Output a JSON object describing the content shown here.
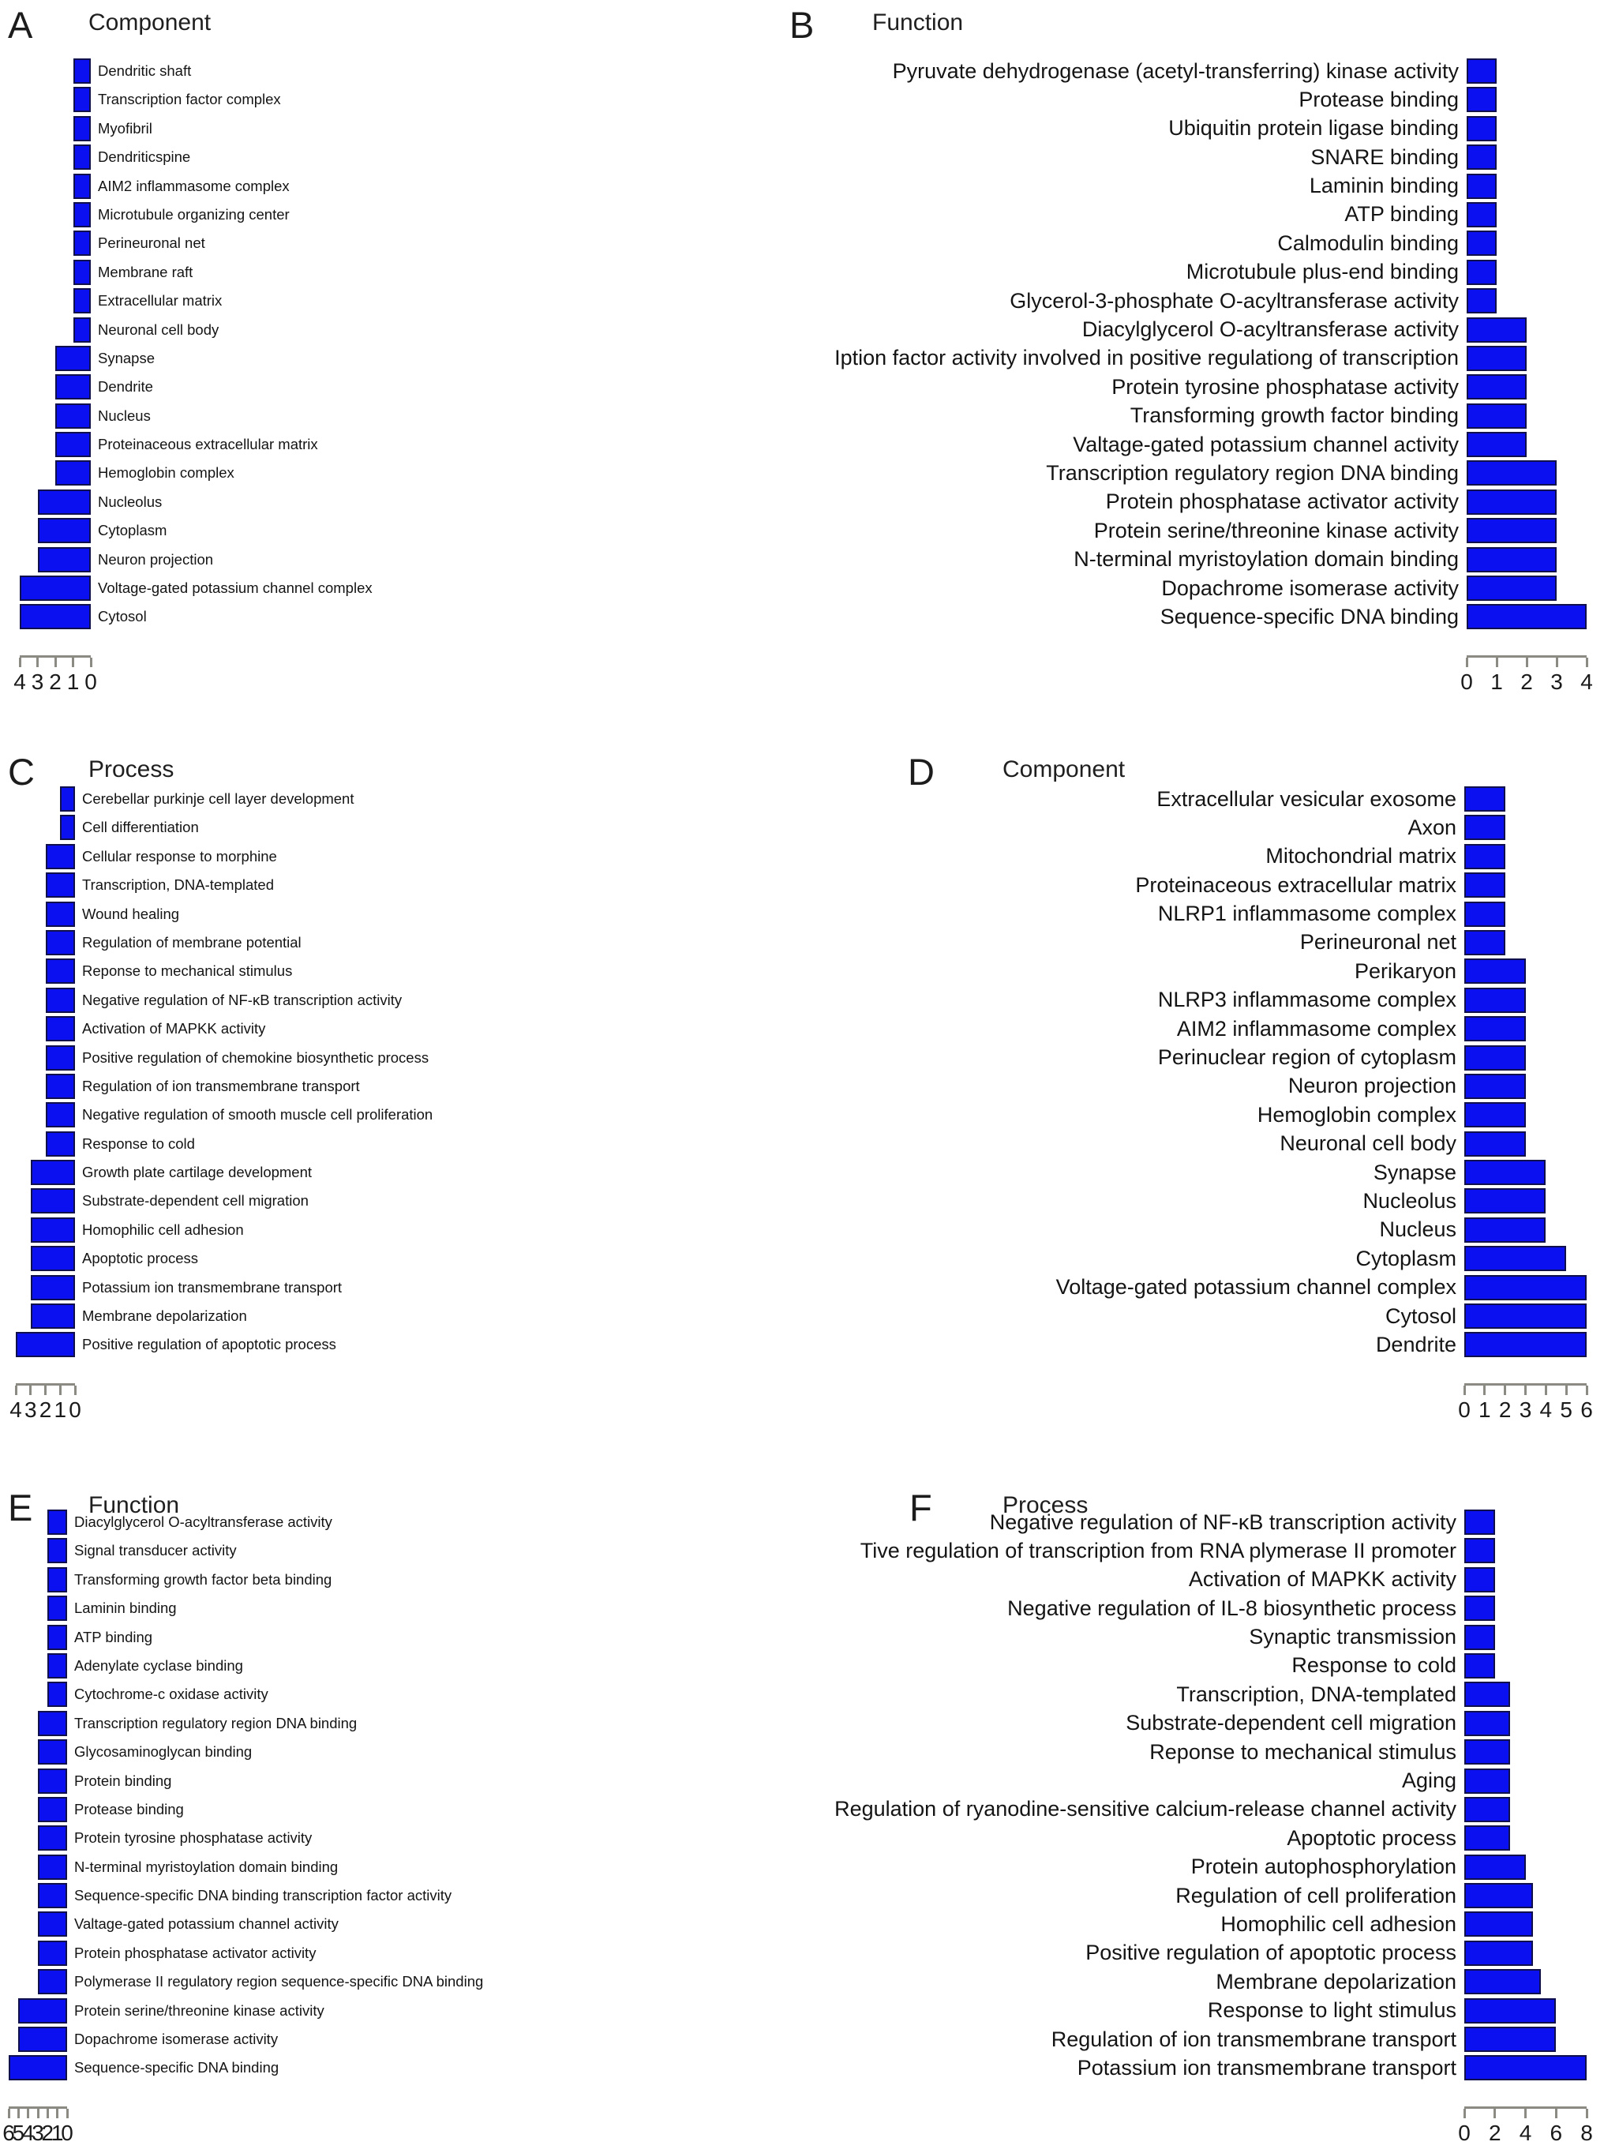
{
  "figure": {
    "background": "#ffffff",
    "bar_color": "#0a10f0",
    "bar_border": "#10104d",
    "axis_color": "#8b8b83",
    "text_color": "#141414"
  },
  "chart_data": [
    {
      "panel": "A",
      "type": "bar",
      "title": "Component",
      "direction": "left",
      "axis_max": 4,
      "axis_ticks": [
        "4",
        "3",
        "2",
        "1",
        "0"
      ],
      "categories": [
        "Dendritic shaft",
        "Transcription factor complex",
        "Myofibril",
        "Dendriticspine",
        "AIM2 inflammasome complex",
        "Microtubule organizing center",
        "Perineuronal net",
        "Membrane raft",
        "Extracellular matrix",
        "Neuronal cell body",
        "Synapse",
        "Dendrite",
        "Nucleus",
        "Proteinaceous extracellular matrix",
        "Hemoglobin complex",
        "Nucleolus",
        "Cytoplasm",
        "Neuron projection",
        "Voltage-gated potassium channel complex",
        "Cytosol"
      ],
      "values": [
        1,
        1,
        1,
        1,
        1,
        1,
        1,
        1,
        1,
        1,
        2,
        2,
        2,
        2,
        2,
        3,
        3,
        3,
        4,
        4
      ]
    },
    {
      "panel": "B",
      "type": "bar",
      "title": "Function",
      "direction": "right",
      "axis_max": 4,
      "axis_ticks": [
        "0",
        "1",
        "2",
        "3",
        "4"
      ],
      "categories": [
        "Pyruvate dehydrogenase (acetyl-transferring) kinase activity",
        "Protease binding",
        "Ubiquitin protein ligase binding",
        "SNARE binding",
        "Laminin binding",
        "ATP binding",
        "Calmodulin binding",
        "Microtubule plus-end binding",
        "Glycerol-3-phosphate O-acyltransferase activity",
        "Diacylglycerol O-acyltransferase activity",
        "Iption factor activity involved in positive regulationg of transcription",
        "Protein tyrosine phosphatase activity",
        "Transforming  growth factor binding",
        "Valtage-gated potassium channel activity",
        "Transcription regulatory region DNA binding",
        "Protein phosphatase activator activity",
        "Protein serine/threonine kinase activity",
        "N-terminal myristoylation domain binding",
        "Dopachrome isomerase activity",
        "Sequence-specific DNA binding"
      ],
      "values": [
        1,
        1,
        1,
        1,
        1,
        1,
        1,
        1,
        1,
        2,
        2,
        2,
        2,
        2,
        3,
        3,
        3,
        3,
        3,
        4
      ]
    },
    {
      "panel": "C",
      "type": "bar",
      "title": "Process",
      "direction": "left",
      "axis_max": 4,
      "axis_ticks": [
        "4",
        "3",
        "2",
        "1",
        "0"
      ],
      "categories": [
        "Cerebellar purkinje cell layer development",
        "Cell differentiation",
        "Cellular response to morphine",
        "Transcription, DNA-templated",
        "Wound healing",
        "Regulation of membrane potential",
        "Reponse to mechanical stimulus",
        "Negative regulation of NF-κB transcription activity",
        "Activation of MAPKK activity",
        "Positive regulation of chemokine biosynthetic process",
        "Regulation of ion transmembrane transport",
        "Negative regulation of smooth muscle cell proliferation",
        "Response to cold",
        "Growth plate cartilage development",
        "Substrate-dependent cell migration",
        "Homophilic cell adhesion",
        "Apoptotic process",
        "Potassium ion transmembrane transport",
        "Membrane depolarization",
        "Positive regulation of apoptotic process"
      ],
      "values": [
        1,
        1,
        2,
        2,
        2,
        2,
        2,
        2,
        2,
        2,
        2,
        2,
        2,
        3,
        3,
        3,
        3,
        3,
        3,
        4
      ]
    },
    {
      "panel": "D",
      "type": "bar",
      "title": "Component",
      "direction": "right",
      "axis_max": 6,
      "axis_ticks": [
        "0",
        "1",
        "2",
        "3",
        "4",
        "5",
        "6"
      ],
      "categories": [
        "Extracellular vesicular exosome",
        "Axon",
        "Mitochondrial matrix",
        "Proteinaceous extracellular matrix",
        "NLRP1 inflammasome complex",
        "Perineuronal net",
        "Perikaryon",
        "NLRP3 inflammasome complex",
        "AIM2 inflammasome complex",
        "Perinuclear region of cytoplasm",
        "Neuron projection",
        "Hemoglobin complex",
        "Neuronal cell body",
        "Synapse",
        "Nucleolus",
        "Nucleus",
        "Cytoplasm",
        "Voltage-gated potassium channel complex",
        "Cytosol",
        "Dendrite"
      ],
      "values": [
        2,
        2,
        2,
        2,
        2,
        2,
        3,
        3,
        3,
        3,
        3,
        3,
        3,
        4,
        4,
        4,
        5,
        6,
        6,
        6
      ]
    },
    {
      "panel": "E",
      "type": "bar",
      "title": "Function",
      "direction": "left",
      "axis_max": 6,
      "axis_ticks": [
        "6",
        "5",
        "4",
        "3",
        "2",
        "1",
        "0"
      ],
      "categories": [
        "Diacylglycerol O-acyltransferase activity",
        "Signal transducer activity",
        "Transforming growth factor beta binding",
        "Laminin binding",
        "ATP binding",
        "Adenylate cyclase binding",
        "Cytochrome-c oxidase activity",
        "Transcription regulatory region DNA binding",
        "Glycosaminoglycan binding",
        "Protein binding",
        "Protease binding",
        "Protein tyrosine phosphatase activity",
        "N-terminal myristoylation domain binding",
        "Sequence-specific DNA binding transcription factor activity",
        "Valtage-gated potassium channel activity",
        "Protein phosphatase activator activity",
        "Polymerase II regulatory region sequence-specific DNA binding",
        "Protein serine/threonine kinase activity",
        "Dopachrome isomerase activity",
        "Sequence-specific DNA binding"
      ],
      "values": [
        2,
        2,
        2,
        2,
        2,
        2,
        2,
        3,
        3,
        3,
        3,
        3,
        3,
        3,
        3,
        3,
        3,
        5,
        5,
        6
      ]
    },
    {
      "panel": "F",
      "type": "bar",
      "title": "Process",
      "direction": "right",
      "axis_max": 8,
      "axis_ticks": [
        "0",
        "2",
        "4",
        "6",
        "8"
      ],
      "categories": [
        "Negative regulation of NF-κB transcription activity",
        "Tive regulation of transcription from RNA plymerase II promoter",
        "Activation of MAPKK activity",
        "Negative regulation of IL-8 biosynthetic process",
        "Synaptic transmission",
        "Response to cold",
        "Transcription, DNA-templated",
        "Substrate-dependent cell migration",
        "Reponse to mechanical stimulus",
        "Aging",
        "Regulation of ryanodine-sensitive calcium-release channel activity",
        "Apoptotic process",
        "Protein autophosphorylation",
        "Regulation of cell proliferation",
        "Homophilic cell adhesion",
        "Positive regulation of apoptotic process",
        "Membrane depolarization",
        "Response to light stimulus",
        "Regulation of ion transmembrane transport",
        "Potassium ion transmembrane transport"
      ],
      "values": [
        2,
        2,
        2,
        2,
        2,
        2,
        3,
        3,
        3,
        3,
        3,
        3,
        4,
        4.5,
        4.5,
        4.5,
        5,
        6,
        6,
        8
      ]
    }
  ]
}
